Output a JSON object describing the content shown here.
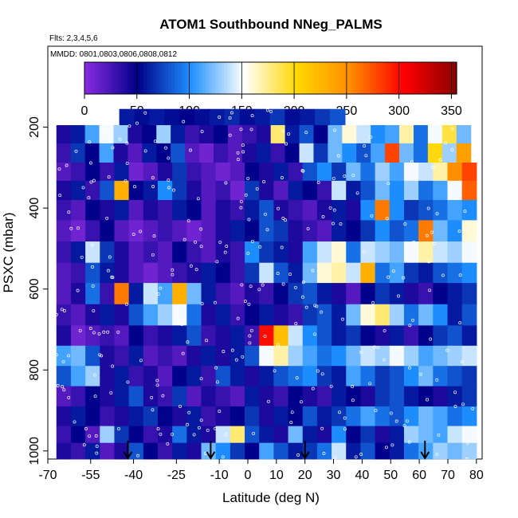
{
  "chart_data": {
    "type": "heatmap",
    "title": "ATOM1 Southbound NNeg_PALMS",
    "flights_note": "Flts: 2,3,4,5,6",
    "dates_note": "MMDD: 0801,0803,0806,0808,0812",
    "xlabel": "Latitude (deg N)",
    "ylabel": "PSXC (mbar)",
    "xlim": [
      -70,
      82
    ],
    "ylim": [
      1020,
      0
    ],
    "x_ticks": [
      -70,
      -55,
      -40,
      -25,
      -10,
      0,
      10,
      20,
      30,
      40,
      50,
      60,
      70,
      80
    ],
    "y_ticks": [
      200,
      400,
      600,
      800,
      1000
    ],
    "colorbar": {
      "range": [
        0,
        355
      ],
      "ticks": [
        0,
        50,
        100,
        150,
        200,
        250,
        300,
        350
      ],
      "colors": [
        "#8a2be2",
        "#00008b",
        "#1e90ff",
        "#ffffff",
        "#ffd700",
        "#ff8c00",
        "#ff0000",
        "#8b0000"
      ]
    },
    "bands": [
      {
        "p": 175,
        "x0": -45,
        "x1": 34,
        "v": [
          60,
          55,
          60,
          55,
          50,
          55,
          60,
          65,
          55,
          60,
          70,
          55,
          60,
          70,
          80
        ]
      },
      {
        "p": 215,
        "x0": -67,
        "x1": 78,
        "v": [
          40,
          60,
          110,
          150,
          130,
          40,
          50,
          130,
          60,
          30,
          40,
          50,
          20,
          30,
          40,
          180,
          60,
          80,
          50,
          120,
          160,
          140,
          100,
          110,
          170,
          90,
          150,
          190,
          120
        ]
      },
      {
        "p": 265,
        "x0": -67,
        "x1": 78,
        "v": [
          30,
          70,
          50,
          110,
          40,
          20,
          60,
          50,
          80,
          20,
          10,
          30,
          20,
          40,
          60,
          30,
          50,
          140,
          70,
          120,
          100,
          80,
          110,
          280,
          120,
          90,
          200,
          130,
          240
        ]
      },
      {
        "p": 310,
        "x0": -67,
        "x1": 80,
        "v": [
          20,
          30,
          50,
          30,
          60,
          10,
          20,
          40,
          70,
          30,
          20,
          10,
          20,
          50,
          40,
          60,
          30,
          80,
          100,
          70,
          120,
          90,
          130,
          110,
          150,
          140,
          170,
          250,
          280
        ]
      },
      {
        "p": 355,
        "x0": -67,
        "x1": 80,
        "v": [
          40,
          60,
          30,
          80,
          230,
          50,
          60,
          100,
          70,
          40,
          20,
          30,
          10,
          70,
          40,
          20,
          60,
          50,
          30,
          140,
          60,
          80,
          120,
          100,
          130,
          90,
          110,
          150,
          270
        ]
      },
      {
        "p": 405,
        "x0": -67,
        "x1": 80,
        "v": [
          30,
          20,
          50,
          40,
          60,
          20,
          40,
          30,
          60,
          50,
          20,
          40,
          30,
          60,
          80,
          40,
          30,
          20,
          40,
          60,
          40,
          100,
          260,
          100,
          70,
          80,
          90,
          110,
          100
        ]
      },
      {
        "p": 455,
        "x0": -67,
        "x1": 80,
        "v": [
          20,
          10,
          30,
          50,
          20,
          10,
          20,
          30,
          20,
          10,
          20,
          40,
          60,
          50,
          80,
          70,
          40,
          30,
          20,
          60,
          50,
          70,
          100,
          80,
          90,
          260,
          120,
          100,
          160
        ]
      },
      {
        "p": 510,
        "x0": -67,
        "x1": 80,
        "v": [
          30,
          60,
          140,
          70,
          40,
          20,
          30,
          20,
          50,
          30,
          20,
          40,
          30,
          100,
          70,
          60,
          40,
          110,
          140,
          160,
          90,
          140,
          130,
          120,
          150,
          170,
          140,
          130,
          150
        ]
      },
      {
        "p": 560,
        "x0": -67,
        "x1": 80,
        "v": [
          20,
          30,
          80,
          60,
          40,
          20,
          10,
          20,
          30,
          40,
          60,
          50,
          30,
          70,
          140,
          80,
          60,
          120,
          160,
          170,
          140,
          230,
          90,
          110,
          70,
          60,
          80,
          90,
          100
        ]
      },
      {
        "p": 610,
        "x0": -67,
        "x1": 80,
        "v": [
          20,
          40,
          90,
          30,
          260,
          60,
          140,
          110,
          230,
          120,
          60,
          30,
          20,
          40,
          30,
          50,
          70,
          80,
          60,
          40,
          20,
          50,
          70,
          60,
          40,
          30,
          50,
          60,
          70
        ]
      },
      {
        "p": 665,
        "x0": -67,
        "x1": 80,
        "v": [
          30,
          20,
          40,
          60,
          40,
          80,
          110,
          130,
          150,
          90,
          40,
          60,
          30,
          50,
          60,
          40,
          30,
          70,
          80,
          60,
          120,
          160,
          180,
          130,
          90,
          120,
          100,
          60,
          80
        ]
      },
      {
        "p": 715,
        "x0": -67,
        "x1": 80,
        "v": [
          40,
          10,
          20,
          30,
          20,
          50,
          30,
          40,
          60,
          80,
          30,
          40,
          60,
          30,
          300,
          220,
          140,
          100,
          80,
          60,
          70,
          50,
          40,
          60,
          30,
          50,
          70,
          80,
          60
        ]
      },
      {
        "p": 765,
        "x0": -67,
        "x1": 80,
        "v": [
          110,
          120,
          80,
          40,
          30,
          60,
          20,
          30,
          20,
          40,
          60,
          40,
          60,
          80,
          150,
          170,
          130,
          110,
          90,
          100,
          120,
          140,
          130,
          150,
          130,
          110,
          120,
          130,
          140
        ]
      },
      {
        "p": 815,
        "x0": -67,
        "x1": 80,
        "v": [
          80,
          110,
          130,
          40,
          60,
          30,
          40,
          20,
          50,
          60,
          30,
          80,
          60,
          40,
          60,
          80,
          90,
          100,
          70,
          60,
          110,
          90,
          70,
          80,
          100,
          120,
          90,
          80,
          70
        ]
      },
      {
        "p": 865,
        "x0": -67,
        "x1": 80,
        "v": [
          20,
          30,
          50,
          40,
          60,
          80,
          40,
          30,
          70,
          20,
          40,
          30,
          20,
          60,
          40,
          30,
          50,
          40,
          30,
          60,
          50,
          40,
          70,
          80,
          60,
          50,
          40,
          60,
          70
        ]
      },
      {
        "p": 915,
        "x0": -67,
        "x1": 80,
        "v": [
          40,
          60,
          50,
          30,
          40,
          60,
          70,
          50,
          40,
          60,
          30,
          40,
          50,
          70,
          40,
          60,
          50,
          80,
          60,
          70,
          90,
          110,
          90,
          80,
          100,
          120,
          110,
          90,
          100
        ]
      },
      {
        "p": 962,
        "x0": -67,
        "x1": 80,
        "v": [
          30,
          50,
          20,
          130,
          70,
          50,
          30,
          40,
          90,
          60,
          40,
          140,
          180,
          80,
          60,
          40,
          120,
          60,
          40,
          100,
          50,
          70,
          40,
          60,
          130,
          120,
          110,
          140,
          150
        ]
      },
      {
        "p": 998,
        "x0": -67,
        "x1": 80,
        "v": [
          40,
          30,
          60,
          20,
          40,
          80,
          50,
          30,
          60,
          40,
          120,
          100,
          70,
          50,
          110,
          80,
          60,
          70,
          90,
          140,
          60,
          80,
          50,
          60,
          90,
          110,
          130,
          120,
          130
        ]
      }
    ],
    "takeoff_markers": [
      -42,
      -13,
      20,
      62
    ]
  }
}
